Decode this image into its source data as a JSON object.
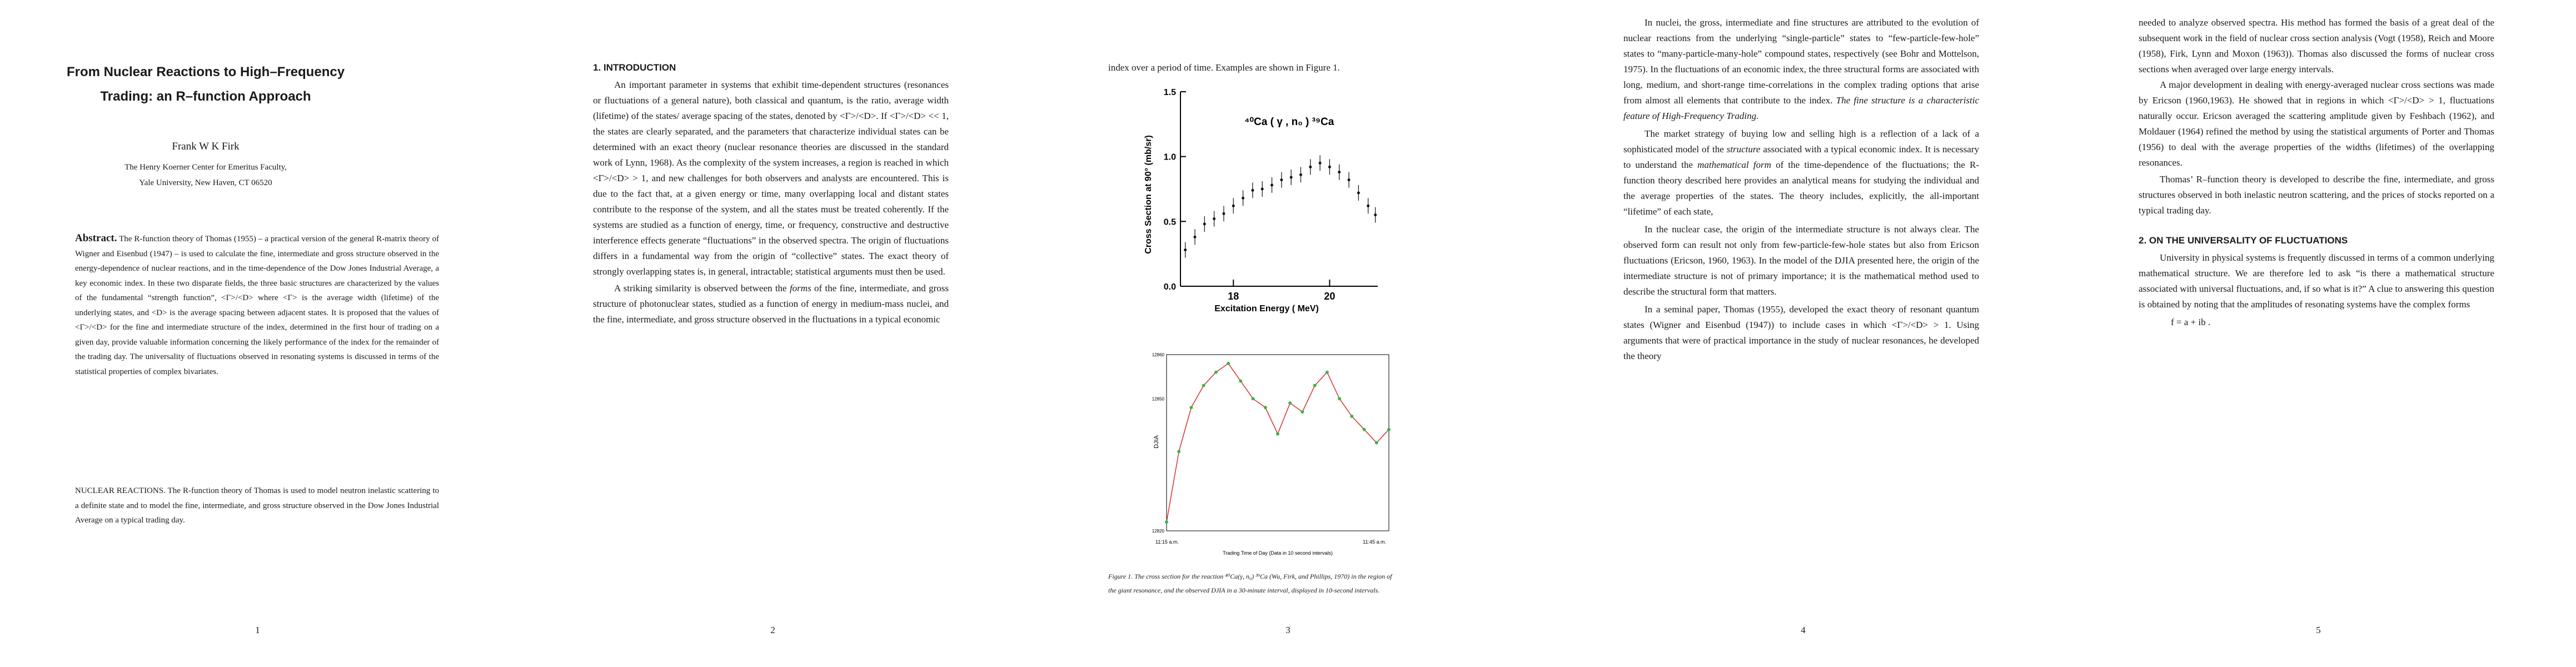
{
  "page1": {
    "title_line1": "From Nuclear Reactions to High–Frequency",
    "title_line2": "Trading: an R–function Approach",
    "author": "Frank W K Firk",
    "affil_line1": "The Henry Koerner Center for Emeritus Faculty,",
    "affil_line2": "Yale University, New Haven, CT  06520",
    "abstract_label": "Abstract.",
    "abstract_text": "  The R-function theory of Thomas (1955) – a practical version of the general R-matrix theory of Wigner and Eisenbud (1947) – is used to calculate the fine, intermediate and gross structure observed in the energy-dependence of nuclear reactions, and in the time-dependence of the Dow Jones Industrial Average, a key economic index.  In these two disparate fields, the three basic structures are characterized by the values of the fundamental “strength function”, <Γ>/<D> where <Γ> is the average width (lifetime) of the underlying states, and <D> is the average spacing between adjacent states.  It is proposed that the values of <Γ>/<D> for the fine and intermediate structure of the index, determined in the first hour of trading on a given day, provide valuable information concerning the likely performance of the index for the remainder of the trading day.  The universality of fluctuations observed in resonating systems is discussed in terms of the statistical properties of complex bivariates.",
    "nuclear_text": "NUCLEAR REACTIONS.  The R-function theory of Thomas is used to model neutron inelastic scattering to a definite state and to model the fine, intermediate, and gross structure observed in the Dow Jones Industrial Average on a typical trading day.",
    "page_number": "1"
  },
  "page2": {
    "heading": "1.  INTRODUCTION",
    "para1": "An important parameter in systems that exhibit time-dependent structures (resonances or fluctuations of a general nature), both classical and quantum, is the ratio, average width (lifetime) of the states/ average spacing of the states, denoted by <Γ>/<D>.  If <Γ>/<D> << 1, the states are clearly separated, and the parameters that characterize individual states can be determined with an exact theory (nuclear resonance theories are discussed in the standard work of Lynn, 1968).  As the complexity of the system increases, a region is reached in which <Γ>/<D> > 1, and new challenges for both observers and analysts are encountered.  This is due to the fact that, at a given energy or time, many overlapping local and distant states contribute to the response of the system, and all the states must be treated coherently.  If the systems are studied as a function of energy, time, or frequency, constructive and destructive interference effects generate “fluctuations” in the observed spectra.  The origin of fluctuations differs in a fundamental way from the origin of “collective” states.  The exact theory of strongly overlapping states is, in general, intractable; statistical arguments must then be used.",
    "para2_a": "A striking similarity is observed between the ",
    "para2_em": "forms",
    "para2_b": " of the fine, intermediate, and gross structure of photonuclear states, studied as a function of energy in medium-mass nuclei, and the fine, intermediate, and gross structure observed in the fluctuations in a typical economic",
    "page_number": "2"
  },
  "page3": {
    "top_line": "index over a period of time.   Examples are shown in Figure 1.",
    "caption_line1": "Figure 1. The cross section for the reaction ⁴⁰Ca(γ, n₀) ³⁹Ca (Wu, Firk, and Phillips, 1970) in the region of",
    "caption_line2": "the giant resonance, and the observed DJIA in a 30-minute interval, displayed in 10-second intervals.",
    "page_number": "3"
  },
  "page4": {
    "para1_a": "In nuclei, the gross, intermediate and fine structures are attributed to the evolution of nuclear reactions from the underlying “single-particle” states to “few-particle-few-hole” states to “many-particle-many-hole” compound states, respectively (see Bohr and Mottelson, 1975).  In the fluctuations of an economic index, the three structural forms are associated with long, medium, and short-range time-correlations in the complex trading options that arise from almost all elements that contribute to the index.  ",
    "para1_em": "The fine structure is a characteristic feature of High-Frequency Trading.",
    "para2_a": "The market strategy of buying low and selling high is a reflection of a lack of a sophisticated model of the ",
    "para2_em1": "structure",
    "para2_b": " associated with a typical economic index.  It is necessary to understand the ",
    "para2_em2": "mathematical form",
    "para2_c": " of the time-dependence of the fluctuations; the R-function theory described here provides an analytical means for studying the individual and the average properties of the states.  The theory includes, explicitly, the all-important “lifetime” of each state,",
    "para3": "In the nuclear case, the origin of the intermediate structure is not always clear.  The observed form can result not only from few-particle-few-hole states but also from Ericson fluctuations (Ericson, 1960, 1963).  In the model of the DJIA presented here, the origin of the intermediate structure is not of primary importance; it is the mathematical method used to describe the structural form that matters.",
    "para4": "In a seminal paper, Thomas (1955), developed the exact theory of resonant quantum states (Wigner and Eisenbud (1947)) to include cases in which <Γ>/<D> > 1.  Using arguments that were of practical importance in the study of nuclear resonances, he developed the theory",
    "page_number": "4"
  },
  "page5": {
    "para1": "needed to analyze observed spectra.  His method has formed the basis of a great deal of the subsequent work in the field of nuclear cross section analysis (Vogt (1958), Reich and Moore (1958), Firk, Lynn and Moxon (1963)).  Thomas also discussed the forms of nuclear cross sections when averaged over large energy intervals.",
    "para2": "A major development in dealing with energy-averaged nuclear cross sections was made by Ericson (1960,1963).  He showed that in regions in which <Γ>/<D> > 1, fluctuations naturally occur.  Ericson averaged the scattering amplitude given by Feshbach (1962), and Moldauer (1964) refined the method by using the statistical arguments of Porter and Thomas (1956) to deal with the average properties of the widths (lifetimes) of the overlapping resonances.",
    "para3": "Thomas’  R–function theory is developed to describe the fine, intermediate, and gross structures observed in both inelastic neutron scattering, and the prices of stocks reported on a typical trading day.",
    "heading2": "2.  ON THE UNIVERSALITY OF FLUCTUATIONS",
    "para4": "University in physical systems is frequently discussed in terms of a common underlying mathematical structure.  We are therefore led to ask “is there a mathematical structure associated with universal fluctuations, and, if so what is it?”  A clue to answering this question is obtained by noting that the amplitudes of resonating systems have the complex forms",
    "formula": "f = a + ib .",
    "page_number": "5"
  },
  "figure_nuclear": {
    "reaction_label": "⁴⁰Ca ( γ , n₀ ) ³⁹Ca",
    "ylabel": "Cross Section at 90° (mb/sr)",
    "xlabel": "Excitation Energy ( MeV)",
    "y_ticks": [
      "1.5",
      "1.0",
      "0.5",
      "0.0"
    ],
    "x_ticks": [
      "18",
      "20"
    ]
  },
  "figure_djia": {
    "ylabel": "DJIA",
    "y_ticks": [
      "12860",
      "12850",
      "12820"
    ],
    "x_tick_start": "11:15 a.m.",
    "x_tick_end": "11:45 a.m.",
    "xlabel": "Trading Time of Day (Data in 10 second intervals)"
  },
  "chart_data": [
    {
      "type": "scatter",
      "title": "⁴⁰Ca ( γ , n₀ ) ³⁹Ca",
      "xlabel": "Excitation Energy ( MeV)",
      "ylabel": "Cross Section at 90° (mb/sr)",
      "xlim": [
        16.9,
        21.0
      ],
      "ylim": [
        0.0,
        1.5
      ],
      "x": [
        17.0,
        17.2,
        17.4,
        17.6,
        17.8,
        18.0,
        18.2,
        18.4,
        18.6,
        18.8,
        19.0,
        19.2,
        19.4,
        19.6,
        19.8,
        20.0,
        20.2,
        20.4,
        20.6,
        20.8,
        20.95
      ],
      "y": [
        0.28,
        0.38,
        0.48,
        0.52,
        0.56,
        0.62,
        0.68,
        0.74,
        0.75,
        0.78,
        0.82,
        0.84,
        0.86,
        0.92,
        0.95,
        0.92,
        0.88,
        0.82,
        0.72,
        0.62,
        0.55
      ]
    },
    {
      "type": "line",
      "ylabel": "DJIA",
      "xlabel": "Trading Time of Day (Data in 10 second intervals)",
      "xlim": [
        0,
        180
      ],
      "ylim": [
        12820,
        12860
      ],
      "x": [
        0,
        10,
        20,
        30,
        40,
        50,
        60,
        70,
        80,
        90,
        100,
        110,
        120,
        130,
        140,
        150,
        160,
        170,
        180
      ],
      "y": [
        12822,
        12838,
        12848,
        12853,
        12856,
        12858,
        12854,
        12850,
        12848,
        12842,
        12849,
        12847,
        12853,
        12856,
        12850,
        12846,
        12843,
        12840,
        12843
      ]
    }
  ]
}
